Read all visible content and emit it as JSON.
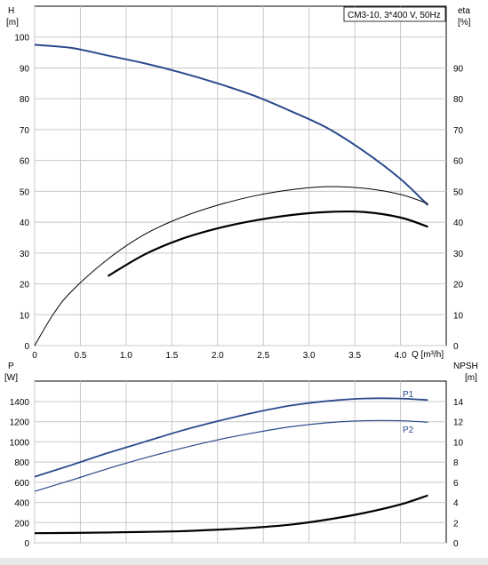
{
  "chart_data": [
    {
      "type": "line",
      "title": "CM3-10, 3*400 V, 50Hz",
      "xlabel": "Q [m³/h]",
      "ylabel": "H\n[m]",
      "ylabel_right": "eta\n[%]",
      "xlim": [
        0,
        4.5
      ],
      "ylim": [
        0,
        110
      ],
      "x_ticks": [
        "0",
        "0.5",
        "1.0",
        "1.5",
        "2.0",
        "2.5",
        "3.0",
        "3.5",
        "4.0"
      ],
      "y_ticks_left": [
        "0",
        "10",
        "20",
        "30",
        "40",
        "50",
        "60",
        "70",
        "80",
        "90",
        "100"
      ],
      "y_ticks_right": [
        "0",
        "10",
        "20",
        "30",
        "40",
        "50",
        "60",
        "70",
        "80",
        "90"
      ],
      "grid": true,
      "series": [
        {
          "color": "#2a4a8c",
          "x": [
            0,
            0.4,
            0.8,
            1.2,
            1.6,
            2.0,
            2.4,
            2.8,
            3.2,
            3.6,
            4.0,
            4.3
          ],
          "y": [
            97.5,
            96.5,
            94,
            91.5,
            88.5,
            85,
            81,
            76,
            70.5,
            63,
            54,
            45.5
          ]
        },
        {
          "color": "#000000",
          "x": [
            0,
            0.2,
            0.4,
            0.8,
            1.2,
            1.6,
            2.0,
            2.4,
            2.8,
            3.2,
            3.6,
            4.0,
            4.3
          ],
          "y": [
            0,
            10,
            17.5,
            28,
            36,
            41.5,
            45.5,
            48.5,
            50.5,
            51.5,
            51,
            49,
            46
          ]
        },
        {
          "color": "#000000",
          "x": [
            0.8,
            1.2,
            1.6,
            2.0,
            2.4,
            2.8,
            3.2,
            3.6,
            4.0,
            4.3
          ],
          "y": [
            22.5,
            29.5,
            34.5,
            38,
            40.5,
            42.3,
            43.3,
            43.3,
            41.5,
            38.5
          ]
        }
      ]
    },
    {
      "type": "line",
      "ylabel": "P\n[W]",
      "ylabel_right": "NPSH\n[m]",
      "xlim": [
        0,
        4.5
      ],
      "ylim_left": [
        0,
        1400
      ],
      "ylim_right": [
        0,
        14
      ],
      "y_ticks_left": [
        "0",
        "200",
        "400",
        "600",
        "800",
        "1000",
        "1200",
        "1400"
      ],
      "y_ticks_right": [
        "0",
        "2",
        "4",
        "6",
        "8",
        "10",
        "12",
        "14"
      ],
      "grid": true,
      "series": [
        {
          "name": "P1",
          "color": "#2a4a8c",
          "x": [
            0,
            0.4,
            0.8,
            1.2,
            1.6,
            2.0,
            2.4,
            2.8,
            3.2,
            3.6,
            4.0,
            4.3
          ],
          "y": [
            655,
            770,
            890,
            1000,
            1110,
            1205,
            1290,
            1360,
            1405,
            1430,
            1430,
            1415
          ]
        },
        {
          "name": "P2",
          "color": "#2a4a8c",
          "x": [
            0,
            0.4,
            0.8,
            1.2,
            1.6,
            2.0,
            2.4,
            2.8,
            3.2,
            3.6,
            4.0,
            4.3
          ],
          "y": [
            510,
            620,
            735,
            840,
            935,
            1020,
            1090,
            1150,
            1190,
            1210,
            1210,
            1195
          ]
        },
        {
          "color": "#000000",
          "axis": "right",
          "x": [
            0,
            0.4,
            0.8,
            1.2,
            1.6,
            2.0,
            2.4,
            2.8,
            3.2,
            3.6,
            4.0,
            4.3
          ],
          "y": [
            0.95,
            0.98,
            1.02,
            1.08,
            1.15,
            1.3,
            1.5,
            1.8,
            2.3,
            2.95,
            3.8,
            4.7
          ]
        }
      ]
    }
  ]
}
